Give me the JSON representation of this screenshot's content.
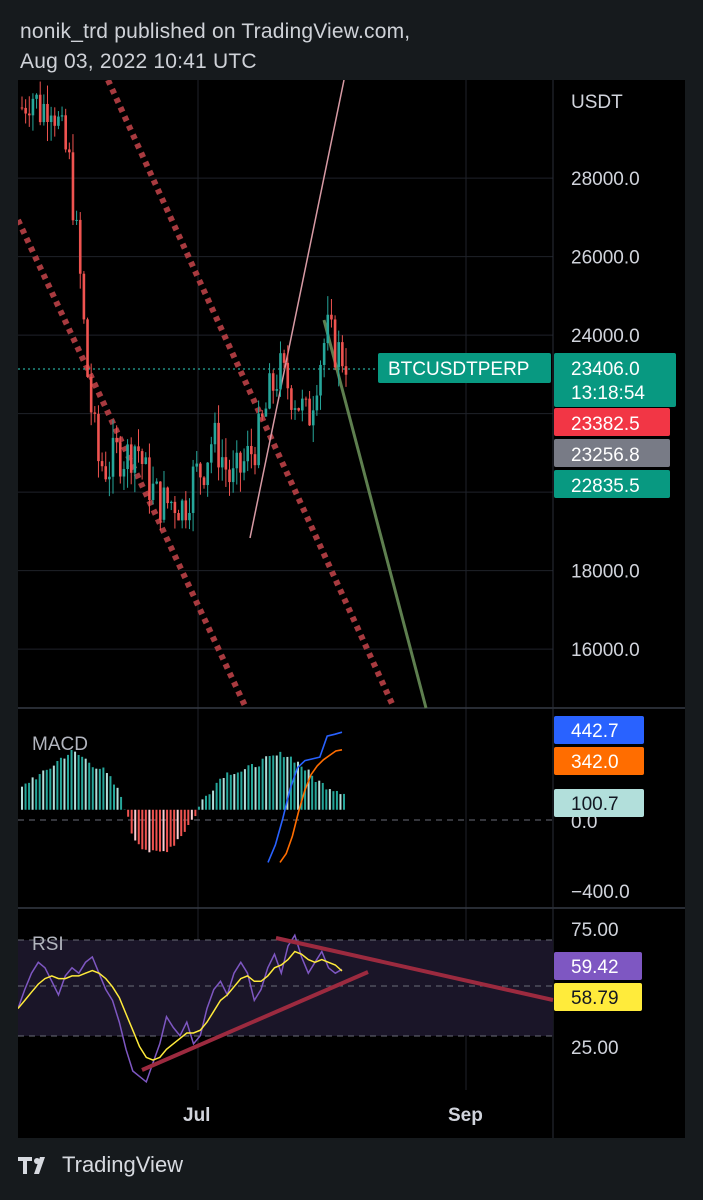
{
  "publication": {
    "author_line": "nonik_trd published on TradingView.com,",
    "date_line": "Aug 03, 2022 10:41 UTC"
  },
  "footer": {
    "brand": "TradingView",
    "logo_icon": "tradingview-logo-icon"
  },
  "colors": {
    "up": "#26a69a",
    "down": "#ef5350",
    "accent_green": "#089981",
    "red_label": "#f23645",
    "gray_label": "#787b86",
    "macd_line": "#2962ff",
    "signal_line": "#ff6d00",
    "rsi_line": "#7e57c2",
    "rsi_ma": "#ffeb3b",
    "channel_dots": "#a83a3f",
    "trendline": "#9c2a3f"
  },
  "chart_data": [
    {
      "type": "candlestick",
      "symbol_label": "BTCUSDTPERP",
      "currency": "USDT",
      "y_ticks": [
        "28000.0",
        "26000.0",
        "24000.0",
        "18000.0",
        "16000.0"
      ],
      "ylim": [
        14500,
        30500
      ],
      "x_ticks": [
        "Jul",
        "Sep"
      ],
      "price_labels": [
        {
          "value": "23406.0",
          "timer": "13:18:54",
          "role": "last price"
        },
        {
          "value": "23382.5",
          "role": "red"
        },
        {
          "value": "23256.8",
          "role": "gray"
        },
        {
          "value": "22835.5",
          "role": "green"
        }
      ],
      "trend": [
        29800,
        30200,
        29700,
        30100,
        29200,
        28300,
        25800,
        22600,
        20800,
        20600,
        21000,
        20900,
        21300,
        20400,
        19900,
        19700,
        19800,
        19600,
        20400,
        20600,
        21400,
        20900,
        20200,
        20600,
        21000,
        21500,
        22500,
        23100,
        22700,
        22300,
        21800,
        23100,
        24100,
        23600,
        23400
      ]
    },
    {
      "type": "bar",
      "title": "MACD",
      "y_ticks": [
        "0.0",
        "−400.0"
      ],
      "ylim": [
        -560,
        580
      ],
      "values_shown": {
        "macd": "442.7",
        "signal": "342.0",
        "histogram": "100.7"
      },
      "histogram": [
        120,
        180,
        200,
        250,
        300,
        330,
        300,
        260,
        230,
        160,
        60,
        -150,
        -210,
        -250,
        -240,
        -200,
        -130,
        -50,
        60,
        130,
        200,
        220,
        220,
        250,
        280,
        300,
        320,
        290,
        240,
        180,
        140,
        120,
        100
      ],
      "macd": [
        -300,
        -200,
        -50,
        120,
        240,
        280,
        290,
        300,
        420,
        430,
        442
      ],
      "signal": [
        -300,
        -250,
        -150,
        -10,
        110,
        200,
        250,
        285,
        310,
        335,
        342
      ]
    },
    {
      "type": "line",
      "title": "RSI",
      "y_ticks": [
        "75.00",
        "25.00"
      ],
      "ylim": [
        15,
        82
      ],
      "values_shown": {
        "rsi": "59.42",
        "rsi_ma": "58.79"
      },
      "rsi": [
        45,
        52,
        58,
        62,
        60,
        55,
        50,
        57,
        60,
        58,
        62,
        64,
        58,
        52,
        48,
        40,
        30,
        22,
        20,
        18,
        25,
        32,
        42,
        38,
        35,
        40,
        32,
        35,
        45,
        52,
        55,
        50,
        58,
        62,
        58,
        48,
        52,
        60,
        65,
        58,
        68,
        72,
        64,
        58,
        62,
        66,
        60,
        58,
        59.42
      ],
      "rsi_ma": [
        45,
        48,
        51,
        54,
        56,
        57,
        56,
        56,
        57,
        57,
        58,
        59,
        58,
        56,
        53,
        49,
        43,
        37,
        31,
        27,
        26,
        27,
        30,
        32,
        34,
        36,
        36,
        37,
        40,
        44,
        48,
        50,
        53,
        56,
        57,
        55,
        55,
        57,
        60,
        61,
        63,
        66,
        65,
        63,
        62,
        63,
        62,
        61,
        58.79
      ]
    }
  ]
}
